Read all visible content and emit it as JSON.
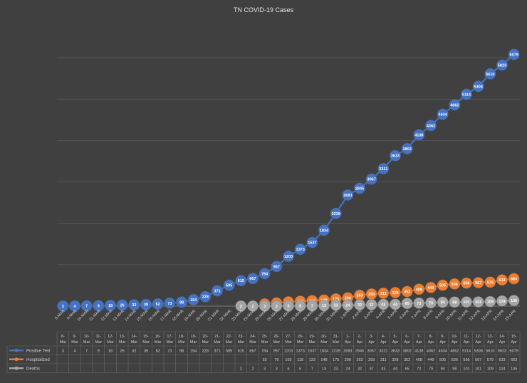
{
  "chart_data": {
    "type": "line",
    "title": "TN COVID-19 Cases",
    "x_axis_labels": [
      "8-MAR",
      "9-MAR",
      "10-MAR",
      "11-MAR",
      "12-MAR",
      "13-MAR",
      "14-MAR",
      "15-MAR",
      "16-MAR",
      "17-MAR",
      "18-MAR",
      "19-MAR",
      "20-MAR",
      "21-MAR",
      "22-MAR",
      "23-MAR",
      "24-MAR",
      "25-MAR",
      "26-MAR",
      "27-MAR",
      "28-MAR",
      "29-MAR",
      "30-MAR",
      "31-MAR",
      "1-APR",
      "2-APR",
      "3-APR",
      "4-APR",
      "5-APR",
      "6-APR",
      "7-APR",
      "8-APR",
      "9-APR",
      "10-APR",
      "11-APR",
      "12-APR",
      "13-APR",
      "14-APR",
      "15-APR"
    ],
    "categories": [
      "8-Mar",
      "9-Mar",
      "10-Mar",
      "11-Mar",
      "12-Mar",
      "13-Mar",
      "14-Mar",
      "15-Mar",
      "16-Mar",
      "17-Mar",
      "18-Mar",
      "19-Mar",
      "20-Mar",
      "21-Mar",
      "22-Mar",
      "23-Mar",
      "24-Mar",
      "25-Mar",
      "26-Mar",
      "27-Mar",
      "28-Mar",
      "29-Mar",
      "30-Mar",
      "31-Mar",
      "1-Apr",
      "2-Apr",
      "3-Apr",
      "4-Apr",
      "5-Apr",
      "6-Apr",
      "7-Apr",
      "8-Apr",
      "9-Apr",
      "10-Apr",
      "11-Apr",
      "12-Apr",
      "13-Apr",
      "14-Apr",
      "15-Apr"
    ],
    "series": [
      {
        "name": "Positive Test",
        "color": "#4472c4",
        "values": [
          3,
          4,
          7,
          9,
          18,
          26,
          32,
          39,
          52,
          73,
          98,
          154,
          228,
          371,
          505,
          615,
          667,
          784,
          957,
          1203,
          1373,
          1537,
          1834,
          2239,
          2683,
          2845,
          3067,
          3321,
          3633,
          3802,
          4138,
          4362,
          4634,
          4862,
          5114,
          5308,
          5610,
          5823,
          6079
        ]
      },
      {
        "name": "Hospitalized",
        "color": "#ed7d31",
        "values": [
          null,
          null,
          null,
          null,
          null,
          null,
          null,
          null,
          null,
          null,
          null,
          null,
          null,
          null,
          null,
          null,
          null,
          53,
          76,
          103,
          118,
          133,
          148,
          175,
          200,
          263,
          293,
          311,
          328,
          352,
          408,
          449,
          505,
          536,
          556,
          567,
          579,
          633,
          663
        ]
      },
      {
        "name": "Deaths",
        "color": "#a5a5a5",
        "values": [
          null,
          null,
          null,
          null,
          null,
          null,
          null,
          null,
          null,
          null,
          null,
          null,
          null,
          null,
          null,
          2,
          2,
          3,
          3,
          6,
          6,
          7,
          13,
          23,
          24,
          32,
          37,
          43,
          44,
          65,
          72,
          79,
          94,
          98,
          101,
          101,
          109,
          124,
          135
        ]
      }
    ],
    "ylim": [
      0,
      6500
    ],
    "grid": true,
    "legend": "data-table"
  }
}
